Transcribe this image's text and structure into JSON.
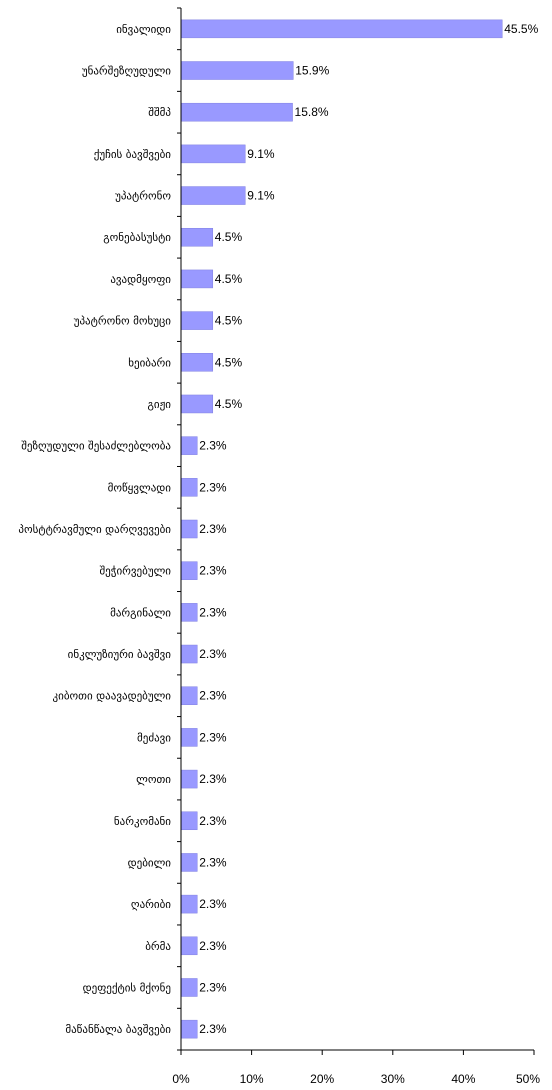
{
  "chart_data": {
    "type": "bar",
    "orientation": "horizontal",
    "categories": [
      "ინვალიდი",
      "უნარშეზღუდული",
      "შშმპ",
      "ქუჩის ბავშვები",
      "უპატრონო",
      "გონებასუსტი",
      "ავადმყოფი",
      "უპატრონო მოხუცი",
      "ხეიბარი",
      "გიჟი",
      "შეზღუდული შესაძლებლობა",
      "მოწყვლადი",
      "პოსტტრავმული დარღვევები",
      "შეჭირვებული",
      "მარგინალი",
      "ინკლუზიური ბავშვი",
      "კიბოთი დაავადებული",
      "მეძავი",
      "ლოთი",
      "ნარკომანი",
      "დებილი",
      "ღარიბი",
      "ბრმა",
      "დეფექტის მქონე",
      "მაწანწალა ბავშვები"
    ],
    "values": [
      45.5,
      15.9,
      15.8,
      9.1,
      9.1,
      4.5,
      4.5,
      4.5,
      4.5,
      4.5,
      2.3,
      2.3,
      2.3,
      2.3,
      2.3,
      2.3,
      2.3,
      2.3,
      2.3,
      2.3,
      2.3,
      2.3,
      2.3,
      2.3,
      2.3
    ],
    "value_labels": [
      "45.5%",
      "15.9%",
      "15.8%",
      "9.1%",
      "9.1%",
      "4.5%",
      "4.5%",
      "4.5%",
      "4.5%",
      "4.5%",
      "2.3%",
      "2.3%",
      "2.3%",
      "2.3%",
      "2.3%",
      "2.3%",
      "2.3%",
      "2.3%",
      "2.3%",
      "2.3%",
      "2.3%",
      "2.3%",
      "2.3%",
      "2.3%",
      "2.3%"
    ],
    "xlim": [
      0,
      50
    ],
    "x_ticks": [
      0,
      10,
      20,
      30,
      40,
      50
    ],
    "x_tick_labels": [
      "0%",
      "10%",
      "20%",
      "30%",
      "40%",
      "50%"
    ],
    "grid": false,
    "legend": "none",
    "bar_color": "#9999ff",
    "bar_edge_color": "#8080e0",
    "axis_color": "#000000"
  }
}
